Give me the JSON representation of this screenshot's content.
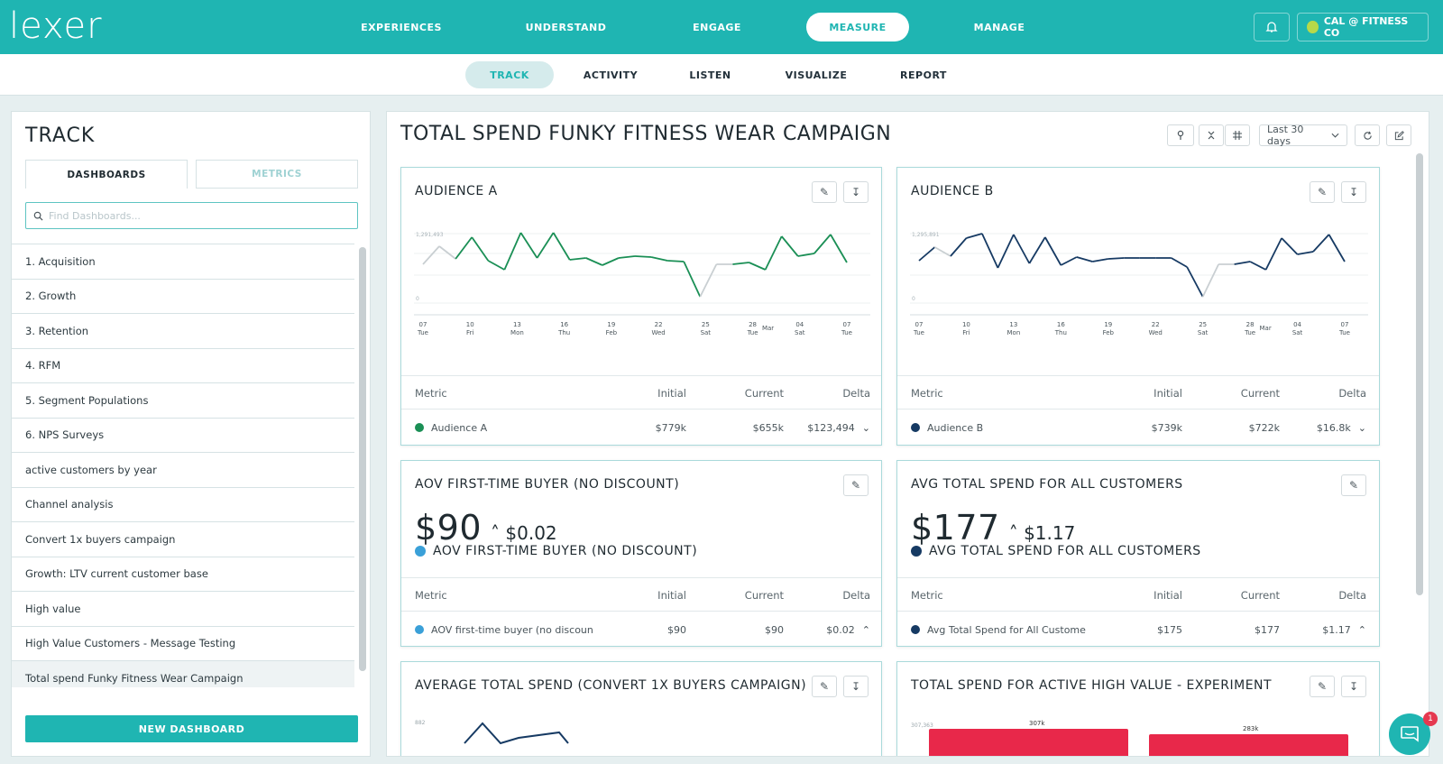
{
  "brand": {
    "logo_text": "lexer",
    "accent": "#1fb5b2"
  },
  "top_nav": [
    {
      "label": "EXPERIENCES",
      "active": false
    },
    {
      "label": "UNDERSTAND",
      "active": false
    },
    {
      "label": "ENGAGE",
      "active": false
    },
    {
      "label": "MEASURE",
      "active": true
    },
    {
      "label": "MANAGE",
      "active": false
    }
  ],
  "account": {
    "name": "CAL @ FITNESS CO",
    "icon": "bell-icon"
  },
  "sub_nav": [
    {
      "label": "TRACK",
      "active": true
    },
    {
      "label": "ACTIVITY",
      "active": false
    },
    {
      "label": "LISTEN",
      "active": false
    },
    {
      "label": "VISUALIZE",
      "active": false
    },
    {
      "label": "REPORT",
      "active": false
    }
  ],
  "left_panel": {
    "title": "TRACK",
    "tabs": [
      {
        "label": "DASHBOARDS",
        "active": true
      },
      {
        "label": "METRICS",
        "active": false
      }
    ],
    "search_placeholder": "Find Dashboards...",
    "dashboards": [
      "1. Acquisition",
      "2. Growth",
      "3. Retention",
      "4. RFM",
      "5. Segment Populations",
      "6. NPS Surveys",
      "active customers by year",
      "Channel analysis",
      "Convert 1x buyers campaign",
      "Growth: LTV current customer base",
      "High value",
      "High Value Customers - Message Testing",
      "Total spend Funky Fitness Wear Campaign"
    ],
    "selected_index": 12,
    "new_button": "NEW DASHBOARD"
  },
  "main": {
    "title": "TOTAL SPEND FUNKY FITNESS WEAR CAMPAIGN",
    "date_range": "Last 30 days",
    "cards": {
      "audience_a": {
        "title": "AUDIENCE A",
        "y_top": "1,291,493",
        "y_zero": "0",
        "color": "#1a8f55",
        "headers": {
          "metric": "Metric",
          "initial": "Initial",
          "current": "Current",
          "delta": "Delta"
        },
        "row": {
          "name": "Audience A",
          "initial": "$779k",
          "current": "$655k",
          "delta": "$123,494"
        }
      },
      "audience_b": {
        "title": "AUDIENCE B",
        "y_top": "1,295,891",
        "y_zero": "0",
        "color": "#163a63",
        "headers": {
          "metric": "Metric",
          "initial": "Initial",
          "current": "Current",
          "delta": "Delta"
        },
        "row": {
          "name": "Audience B",
          "initial": "$739k",
          "current": "$722k",
          "delta": "$16.8k"
        }
      },
      "aov": {
        "title": "AOV FIRST-TIME BUYER (NO DISCOUNT)",
        "value": "$90",
        "delta": "$0.02",
        "legend": "AOV FIRST-TIME BUYER (NO DISCOUNT)",
        "color": "#3aa0d8",
        "headers": {
          "metric": "Metric",
          "initial": "Initial",
          "current": "Current",
          "delta": "Delta"
        },
        "row": {
          "name": "AOV first-time buyer (no discoun",
          "initial": "$90",
          "current": "$90",
          "delta": "$0.02"
        }
      },
      "avg_total": {
        "title": "AVG TOTAL SPEND FOR ALL CUSTOMERS",
        "value": "$177",
        "delta": "$1.17",
        "legend": "AVG TOTAL SPEND FOR ALL CUSTOMERS",
        "color": "#163a63",
        "headers": {
          "metric": "Metric",
          "initial": "Initial",
          "current": "Current",
          "delta": "Delta"
        },
        "row": {
          "name": "Avg Total Spend for All Custome",
          "initial": "$175",
          "current": "$177",
          "delta": "$1.17"
        }
      },
      "avg_convert": {
        "title": "AVERAGE TOTAL SPEND (CONVERT 1X BUYERS CAMPAIGN)",
        "y_top": "882"
      },
      "high_value": {
        "title": "TOTAL SPEND FOR ACTIVE HIGH VALUE - EXPERIMENT",
        "y_top": "307,363",
        "bar_labels": [
          "307k",
          "283k"
        ],
        "bar_color": "#e8284a"
      }
    },
    "x_ticks": [
      {
        "d": "07",
        "w": "Tue"
      },
      {
        "d": "10",
        "w": "Fri"
      },
      {
        "d": "13",
        "w": "Mon"
      },
      {
        "d": "16",
        "w": "Thu"
      },
      {
        "d": "19",
        "w": "Feb"
      },
      {
        "d": "22",
        "w": "Wed"
      },
      {
        "d": "25",
        "w": "Sat"
      },
      {
        "d": "28",
        "w": "Tue",
        "extra": "Mar"
      },
      {
        "d": "04",
        "w": "Sat"
      },
      {
        "d": "07",
        "w": "Tue"
      }
    ]
  },
  "chat": {
    "badge": "1"
  }
}
